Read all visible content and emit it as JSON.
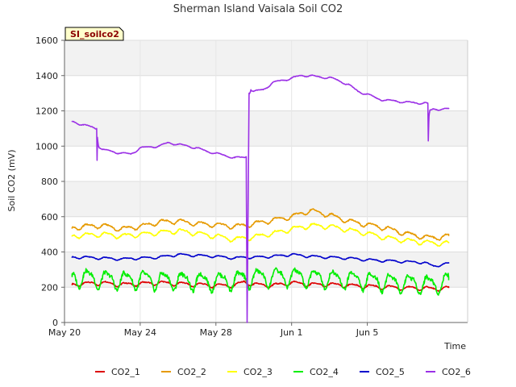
{
  "chart_data": {
    "type": "line",
    "title": "Sherman Island Vaisala Soil CO2",
    "xlabel": "Time",
    "ylabel": "Soil CO2 (mV)",
    "badge": "SI_soilco2",
    "ylim": [
      0,
      1600
    ],
    "xlim": [
      0,
      21.3
    ],
    "yticks": [
      0,
      200,
      400,
      600,
      800,
      1000,
      1200,
      1400,
      1600
    ],
    "xticks": [
      {
        "x": 0,
        "label": "May 20"
      },
      {
        "x": 4,
        "label": "May 24"
      },
      {
        "x": 8,
        "label": "May 28"
      },
      {
        "x": 12,
        "label": "Jun 1"
      },
      {
        "x": 16,
        "label": "Jun 5"
      }
    ],
    "grid": true,
    "legend": "bottom",
    "series": [
      {
        "name": "CO2_1",
        "color": "#dd0000",
        "x": [
          0.4,
          1,
          2,
          3,
          4,
          5,
          6,
          7,
          8,
          9,
          9.5,
          10,
          11,
          12,
          13,
          14,
          15,
          16,
          17,
          18,
          19,
          19.5,
          20.3
        ],
        "y": [
          215,
          220,
          225,
          215,
          220,
          225,
          220,
          215,
          210,
          210,
          230,
          215,
          210,
          225,
          215,
          215,
          210,
          205,
          200,
          195,
          195,
          190,
          195
        ],
        "osc": 10
      },
      {
        "name": "CO2_2",
        "color": "#e69a00",
        "x": [
          0.4,
          1,
          2,
          3,
          4,
          5,
          6,
          7,
          8,
          9,
          9.5,
          10,
          11,
          12,
          13,
          14,
          15,
          16,
          17,
          18,
          19,
          19.5,
          20.3
        ],
        "y": [
          535,
          545,
          550,
          530,
          545,
          570,
          575,
          560,
          555,
          545,
          550,
          560,
          580,
          600,
          635,
          610,
          575,
          555,
          535,
          505,
          485,
          480,
          490
        ],
        "osc": 12
      },
      {
        "name": "CO2_3",
        "color": "#ffff00",
        "x": [
          0.4,
          1,
          2,
          3,
          4,
          5,
          6,
          7,
          8,
          9,
          9.5,
          10,
          11,
          12,
          13,
          14,
          15,
          16,
          17,
          18,
          19,
          19.5,
          20.3
        ],
        "y": [
          490,
          495,
          500,
          490,
          500,
          510,
          520,
          505,
          490,
          470,
          480,
          485,
          505,
          530,
          550,
          545,
          525,
          505,
          480,
          465,
          455,
          450,
          450
        ],
        "osc": 12
      },
      {
        "name": "CO2_4",
        "color": "#00ee00",
        "x": [
          0.4,
          1,
          2,
          3,
          4,
          5,
          6,
          7,
          8,
          9,
          9.5,
          10,
          11,
          12,
          13,
          14,
          15,
          16,
          17,
          18,
          19,
          19.5,
          20.3
        ],
        "y": [
          260,
          255,
          245,
          240,
          245,
          240,
          240,
          235,
          235,
          240,
          250,
          255,
          260,
          260,
          255,
          250,
          245,
          240,
          230,
          225,
          220,
          215,
          240
        ],
        "osc": 45
      },
      {
        "name": "CO2_5",
        "color": "#0000cc",
        "x": [
          0.4,
          1,
          2,
          3,
          4,
          5,
          6,
          7,
          8,
          9,
          9.5,
          10,
          11,
          12,
          13,
          14,
          15,
          16,
          17,
          18,
          19,
          19.5,
          20.3
        ],
        "y": [
          370,
          370,
          365,
          360,
          365,
          370,
          385,
          380,
          375,
          365,
          370,
          370,
          375,
          385,
          375,
          370,
          365,
          355,
          350,
          345,
          340,
          320,
          335
        ],
        "osc": 6
      },
      {
        "name": "CO2_6",
        "color": "#9b30e6",
        "x": [
          0.4,
          1,
          1.7,
          1.72,
          1.74,
          1.8,
          2,
          3,
          3.5,
          4,
          5,
          5.5,
          6,
          7,
          7.5,
          8,
          8.5,
          9,
          9.5,
          9.6,
          9.65,
          9.75,
          9.85,
          10,
          10.5,
          11,
          12,
          12.5,
          13,
          13.5,
          14,
          14.5,
          15,
          15.5,
          16,
          16.5,
          17,
          17.5,
          18,
          18.5,
          19,
          19.2,
          19.22,
          19.26,
          19.3,
          19.5,
          20,
          20.3
        ],
        "y": [
          1140,
          1120,
          1100,
          920,
          1050,
          1000,
          980,
          960,
          955,
          990,
          1000,
          1020,
          1010,
          990,
          970,
          960,
          945,
          935,
          935,
          940,
          0,
          1300,
          1320,
          1310,
          1320,
          1360,
          1385,
          1400,
          1400,
          1390,
          1390,
          1370,
          1350,
          1310,
          1295,
          1270,
          1260,
          1255,
          1250,
          1245,
          1245,
          1240,
          1030,
          1170,
          1200,
          1210,
          1210,
          1210
        ],
        "osc": 5
      }
    ]
  }
}
